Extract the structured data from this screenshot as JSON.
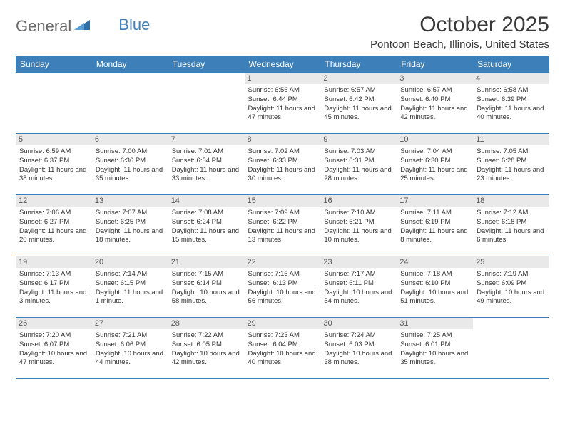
{
  "logo": {
    "text1": "General",
    "text2": "Blue"
  },
  "title": "October 2025",
  "location": "Pontoon Beach, Illinois, United States",
  "colors": {
    "header_bg": "#3d7fb8",
    "header_text": "#ffffff",
    "daynum_bg": "#e9e9e9",
    "daynum_text": "#575757",
    "border": "#3d7fb8",
    "body_text": "#333333",
    "background": "#ffffff"
  },
  "fonts": {
    "title_size_pt": 30,
    "location_size_pt": 15,
    "weekday_size_pt": 12,
    "daynum_size_pt": 11,
    "info_size_pt": 9.5
  },
  "weekdays": [
    "Sunday",
    "Monday",
    "Tuesday",
    "Wednesday",
    "Thursday",
    "Friday",
    "Saturday"
  ],
  "weeks": [
    [
      {
        "day": "",
        "sunrise": "",
        "sunset": "",
        "daylight": "",
        "empty": true
      },
      {
        "day": "",
        "sunrise": "",
        "sunset": "",
        "daylight": "",
        "empty": true
      },
      {
        "day": "",
        "sunrise": "",
        "sunset": "",
        "daylight": "",
        "empty": true
      },
      {
        "day": "1",
        "sunrise": "Sunrise: 6:56 AM",
        "sunset": "Sunset: 6:44 PM",
        "daylight": "Daylight: 11 hours and 47 minutes."
      },
      {
        "day": "2",
        "sunrise": "Sunrise: 6:57 AM",
        "sunset": "Sunset: 6:42 PM",
        "daylight": "Daylight: 11 hours and 45 minutes."
      },
      {
        "day": "3",
        "sunrise": "Sunrise: 6:57 AM",
        "sunset": "Sunset: 6:40 PM",
        "daylight": "Daylight: 11 hours and 42 minutes."
      },
      {
        "day": "4",
        "sunrise": "Sunrise: 6:58 AM",
        "sunset": "Sunset: 6:39 PM",
        "daylight": "Daylight: 11 hours and 40 minutes."
      }
    ],
    [
      {
        "day": "5",
        "sunrise": "Sunrise: 6:59 AM",
        "sunset": "Sunset: 6:37 PM",
        "daylight": "Daylight: 11 hours and 38 minutes."
      },
      {
        "day": "6",
        "sunrise": "Sunrise: 7:00 AM",
        "sunset": "Sunset: 6:36 PM",
        "daylight": "Daylight: 11 hours and 35 minutes."
      },
      {
        "day": "7",
        "sunrise": "Sunrise: 7:01 AM",
        "sunset": "Sunset: 6:34 PM",
        "daylight": "Daylight: 11 hours and 33 minutes."
      },
      {
        "day": "8",
        "sunrise": "Sunrise: 7:02 AM",
        "sunset": "Sunset: 6:33 PM",
        "daylight": "Daylight: 11 hours and 30 minutes."
      },
      {
        "day": "9",
        "sunrise": "Sunrise: 7:03 AM",
        "sunset": "Sunset: 6:31 PM",
        "daylight": "Daylight: 11 hours and 28 minutes."
      },
      {
        "day": "10",
        "sunrise": "Sunrise: 7:04 AM",
        "sunset": "Sunset: 6:30 PM",
        "daylight": "Daylight: 11 hours and 25 minutes."
      },
      {
        "day": "11",
        "sunrise": "Sunrise: 7:05 AM",
        "sunset": "Sunset: 6:28 PM",
        "daylight": "Daylight: 11 hours and 23 minutes."
      }
    ],
    [
      {
        "day": "12",
        "sunrise": "Sunrise: 7:06 AM",
        "sunset": "Sunset: 6:27 PM",
        "daylight": "Daylight: 11 hours and 20 minutes."
      },
      {
        "day": "13",
        "sunrise": "Sunrise: 7:07 AM",
        "sunset": "Sunset: 6:25 PM",
        "daylight": "Daylight: 11 hours and 18 minutes."
      },
      {
        "day": "14",
        "sunrise": "Sunrise: 7:08 AM",
        "sunset": "Sunset: 6:24 PM",
        "daylight": "Daylight: 11 hours and 15 minutes."
      },
      {
        "day": "15",
        "sunrise": "Sunrise: 7:09 AM",
        "sunset": "Sunset: 6:22 PM",
        "daylight": "Daylight: 11 hours and 13 minutes."
      },
      {
        "day": "16",
        "sunrise": "Sunrise: 7:10 AM",
        "sunset": "Sunset: 6:21 PM",
        "daylight": "Daylight: 11 hours and 10 minutes."
      },
      {
        "day": "17",
        "sunrise": "Sunrise: 7:11 AM",
        "sunset": "Sunset: 6:19 PM",
        "daylight": "Daylight: 11 hours and 8 minutes."
      },
      {
        "day": "18",
        "sunrise": "Sunrise: 7:12 AM",
        "sunset": "Sunset: 6:18 PM",
        "daylight": "Daylight: 11 hours and 6 minutes."
      }
    ],
    [
      {
        "day": "19",
        "sunrise": "Sunrise: 7:13 AM",
        "sunset": "Sunset: 6:17 PM",
        "daylight": "Daylight: 11 hours and 3 minutes."
      },
      {
        "day": "20",
        "sunrise": "Sunrise: 7:14 AM",
        "sunset": "Sunset: 6:15 PM",
        "daylight": "Daylight: 11 hours and 1 minute."
      },
      {
        "day": "21",
        "sunrise": "Sunrise: 7:15 AM",
        "sunset": "Sunset: 6:14 PM",
        "daylight": "Daylight: 10 hours and 58 minutes."
      },
      {
        "day": "22",
        "sunrise": "Sunrise: 7:16 AM",
        "sunset": "Sunset: 6:13 PM",
        "daylight": "Daylight: 10 hours and 56 minutes."
      },
      {
        "day": "23",
        "sunrise": "Sunrise: 7:17 AM",
        "sunset": "Sunset: 6:11 PM",
        "daylight": "Daylight: 10 hours and 54 minutes."
      },
      {
        "day": "24",
        "sunrise": "Sunrise: 7:18 AM",
        "sunset": "Sunset: 6:10 PM",
        "daylight": "Daylight: 10 hours and 51 minutes."
      },
      {
        "day": "25",
        "sunrise": "Sunrise: 7:19 AM",
        "sunset": "Sunset: 6:09 PM",
        "daylight": "Daylight: 10 hours and 49 minutes."
      }
    ],
    [
      {
        "day": "26",
        "sunrise": "Sunrise: 7:20 AM",
        "sunset": "Sunset: 6:07 PM",
        "daylight": "Daylight: 10 hours and 47 minutes."
      },
      {
        "day": "27",
        "sunrise": "Sunrise: 7:21 AM",
        "sunset": "Sunset: 6:06 PM",
        "daylight": "Daylight: 10 hours and 44 minutes."
      },
      {
        "day": "28",
        "sunrise": "Sunrise: 7:22 AM",
        "sunset": "Sunset: 6:05 PM",
        "daylight": "Daylight: 10 hours and 42 minutes."
      },
      {
        "day": "29",
        "sunrise": "Sunrise: 7:23 AM",
        "sunset": "Sunset: 6:04 PM",
        "daylight": "Daylight: 10 hours and 40 minutes."
      },
      {
        "day": "30",
        "sunrise": "Sunrise: 7:24 AM",
        "sunset": "Sunset: 6:03 PM",
        "daylight": "Daylight: 10 hours and 38 minutes."
      },
      {
        "day": "31",
        "sunrise": "Sunrise: 7:25 AM",
        "sunset": "Sunset: 6:01 PM",
        "daylight": "Daylight: 10 hours and 35 minutes."
      },
      {
        "day": "",
        "sunrise": "",
        "sunset": "",
        "daylight": "",
        "empty": true
      }
    ]
  ]
}
